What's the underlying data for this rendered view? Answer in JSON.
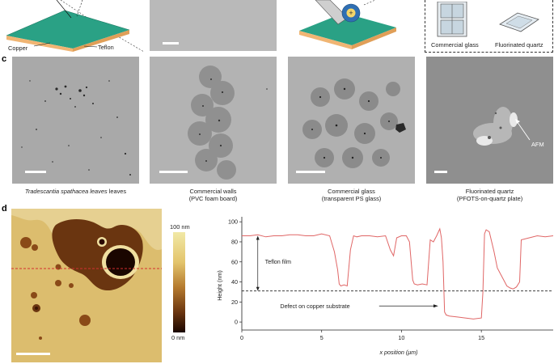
{
  "panels": {
    "c_letter": "c",
    "d_letter": "d"
  },
  "top_row": {
    "copper_label": "Copper",
    "teflon_label": "Teflon",
    "commercial_glass_label": "Commercial glass",
    "fluorinated_quartz_label": "Fluorinated quartz"
  },
  "micrographs": [
    {
      "caption_line1": "Tradescantia spathacea leaves",
      "caption_line2": "",
      "italic": true
    },
    {
      "caption_line1": "Commercial walls",
      "caption_line2": "(PVC foam board)",
      "italic": false
    },
    {
      "caption_line1": "Commercial glass",
      "caption_line2": "(transparent PS glass)",
      "italic": false
    },
    {
      "caption_line1": "Fluorinated quartz",
      "caption_line2": "(PFOTS-on-quartz plate)",
      "italic": false
    }
  ],
  "afm_annotation": "AFM",
  "colorbar": {
    "max_label": "100 nm",
    "min_label": "0 nm",
    "color_top": "#f1e9a6",
    "color_bottom": "#1a0600"
  },
  "profile_annotations": {
    "teflon_film": "Teflon film",
    "defect": "Defect on copper substrate"
  },
  "chart_data": {
    "type": "line",
    "title": "",
    "xlabel": "x position (μm)",
    "ylabel": "Height (nm)",
    "xlim": [
      0,
      19.5
    ],
    "ylim": [
      -8,
      105
    ],
    "xticks": [
      0,
      5,
      10,
      15
    ],
    "yticks": [
      0,
      20,
      40,
      60,
      80,
      100
    ],
    "reference_line_y": 31,
    "line_color": "#e06666",
    "series": [
      {
        "x": [
          0,
          0.5,
          1,
          1.5,
          2,
          2.5,
          3,
          3.5,
          4,
          4.5,
          5,
          5.5,
          5.8,
          6.0,
          6.1,
          6.2,
          6.4,
          6.6,
          6.8,
          7.0,
          7.2,
          7.5,
          8.0,
          8.5,
          9.0,
          9.3,
          9.5,
          9.7,
          10.0,
          10.3,
          10.5,
          10.7,
          10.8,
          11.0,
          11.3,
          11.6,
          11.8,
          12.0,
          12.2,
          12.4,
          12.5,
          12.6,
          12.7,
          12.8,
          13.0,
          13.5,
          14.0,
          14.5,
          15.0,
          15.1,
          15.2,
          15.3,
          15.5,
          15.8,
          16.0,
          16.2,
          16.4,
          16.6,
          16.8,
          17.0,
          17.2,
          17.4,
          17.5,
          18.0,
          18.5,
          19.0,
          19.5
        ],
        "y": [
          86,
          86,
          87,
          85,
          86,
          86,
          87,
          87,
          86,
          86,
          88,
          86,
          70,
          52,
          38,
          36,
          37,
          36,
          72,
          86,
          85,
          86,
          86,
          85,
          86,
          72,
          66,
          84,
          86,
          86,
          80,
          42,
          38,
          37,
          38,
          37,
          82,
          80,
          86,
          93,
          84,
          60,
          10,
          7,
          6,
          5,
          4,
          3,
          4,
          30,
          88,
          92,
          90,
          70,
          54,
          48,
          42,
          36,
          34,
          33,
          35,
          40,
          82,
          84,
          86,
          85,
          86
        ]
      }
    ]
  }
}
